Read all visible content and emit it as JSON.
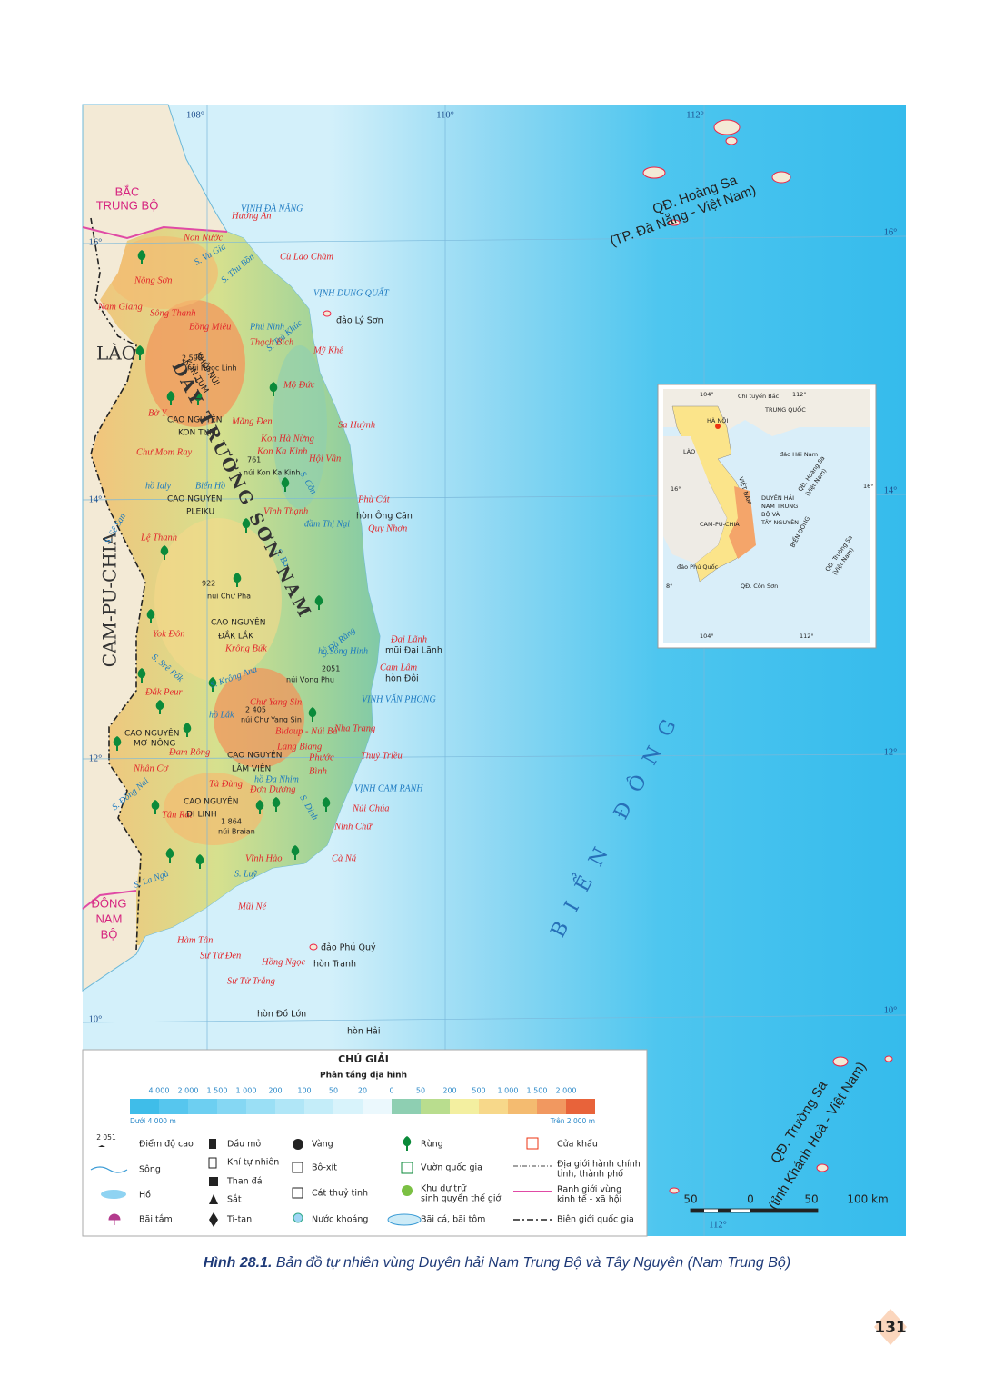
{
  "map": {
    "graticule": [
      "108°",
      "110°",
      "112°",
      "16°",
      "16°",
      "14°",
      "14°",
      "12°",
      "12°",
      "10°",
      "10°",
      "112°"
    ],
    "regions": [
      "BẮC",
      "TRUNG BỘ",
      "LÀO",
      "CAM-PU-CHIA",
      "ĐÔNG",
      "NAM",
      "BỘ",
      "BIỂN ĐÔNG",
      "QĐ. Hoàng Sa",
      "(TP. Đà Nẵng - Việt Nam)",
      "QĐ. Trường Sa",
      "(tỉnh Khánh Hoà - Việt Nam)"
    ],
    "places": [
      "Non Nước",
      "Hương An",
      "Cù Lao Chàm",
      "Nông Sơn",
      "Nam Giang",
      "Sông Thanh",
      "Bồng Miêu",
      "Phú Ninh",
      "Thạch Bích",
      "Mỹ Khê",
      "Mộ Đức",
      "Sa Huỳnh",
      "Bờ Y",
      "Măng Đen",
      "Kon Hà Nừng",
      "Kon Ka Kinh",
      "Chư Mom Ray",
      "Hội Vân",
      "Phù Cát",
      "Vĩnh Thạnh",
      "Quy Nhơn",
      "Lệ Thanh",
      "Yok Đôn",
      "Krông Búk",
      "Đại Lãnh",
      "Cam Lâm",
      "Chư Yang Sin",
      "Đắk Peur",
      "Đam Rông",
      "Bidoup - Núi Bà",
      "Lang Biang",
      "Nha Trang",
      "Phước",
      "Bình",
      "Thuỷ Triều",
      "Nhân Cơ",
      "Tà Đùng",
      "Đơn Dương",
      "Tân Rai",
      "Núi Chúa",
      "Ninh Chữ",
      "Vĩnh Hảo",
      "Cà Ná",
      "Mũi Né",
      "Hàm Tân",
      "Sư Tử Đen",
      "Hồng Ngọc",
      "Sư Tử Trắng",
      "đảo Lý Sơn",
      "2 598",
      "núi Ngọc Linh",
      "761",
      "núi Kon Ka Kinh",
      "hòn Ông Căn",
      "922",
      "núi Chư Pha",
      "mũi Đại Lãnh",
      "hòn Đôi",
      "2051",
      "núi Vọng Phu",
      "2 405",
      "núi Chư Yang Sin",
      "1 864",
      "núi Braian",
      "đảo Phú Quý",
      "hòn Tranh",
      "hòn Đồ Lớn",
      "hòn Hải",
      "CAO NGUYÊN",
      "KON TUM",
      "CAO NGUYÊN",
      "PLEIKU",
      "CAO NGUYÊN",
      "ĐẮK LẮK",
      "CAO NGUYÊN",
      "MƠ NÔNG",
      "CAO NGUYÊN",
      "LÂM VIÊN",
      "CAO NGUYÊN",
      "DI LINH",
      "VỊNH ĐÀ NẴNG",
      "VỊNH DUNG QUẤT",
      "VỊNH VĂN PHONG",
      "VỊNH CAM RANH",
      "đầm Thị Nại",
      "hồ Ialy",
      "Biển Hồ",
      "hồ Sông Hinh",
      "hồ Lắk",
      "hồ Đa Nhim",
      "S. Vu Gia",
      "S. Thu Bồn",
      "S. Trà Khúc",
      "S. Sê San",
      "S. Ba",
      "S. Krông Ana",
      "S. Đồng Nai",
      "S. La Ngà",
      "S. Luỹ",
      "S. Dinh",
      "S. Srê Pốk",
      "S. Đà Rằng",
      "S. Côn",
      "KHỐI NÚI",
      "KON TUM",
      "DÃY TRƯỜNG SƠN NAM"
    ],
    "inset": [
      "Chí tuyến Bắc",
      "104°",
      "112°",
      "TRUNG QUỐC",
      "HÀ NỘI",
      "LÀO",
      "đảo Hải Nam",
      "16°",
      "16°",
      "CAM-PU-CHIA",
      "VIỆT NAM",
      "DUYÊN HẢI",
      "NAM TRUNG",
      "BỘ VÀ",
      "TÂY NGUYÊN",
      "QĐ. Hoàng Sa",
      "(Việt Nam)",
      "BIỂN ĐÔNG",
      "QĐ. Trường Sa",
      "(Việt Nam)",
      "đảo Phú Quốc",
      "8°",
      "QĐ. Côn Sơn",
      "104°",
      "112°"
    ]
  },
  "legend": {
    "title": "CHÚ GIẢI",
    "subtitle": "Phân tầng địa hình",
    "levels": [
      "4 000",
      "2 000",
      "1 500",
      "1 000",
      "200",
      "100",
      "50",
      "20",
      "0",
      "50",
      "200",
      "500",
      "1 000",
      "1 500",
      "2 000"
    ],
    "colors": [
      "#3fbde9",
      "#56c6ee",
      "#6dcff1",
      "#85d7f3",
      "#9adff5",
      "#b0e6f7",
      "#c4edf9",
      "#d8f3fb",
      "#ebf8fd",
      "#8ecfb2",
      "#b9dd8e",
      "#f3efa0",
      "#f7d88a",
      "#f4bb70",
      "#f19860",
      "#e8633a"
    ],
    "low_end": "Dưới 4 000 m",
    "high_end": "Trên 2 000 m",
    "height_sample": "2 051",
    "items": [
      [
        "Điểm độ cao"
      ],
      [
        "Sông"
      ],
      [
        "Hồ"
      ],
      [
        "Bãi tắm"
      ],
      [
        "Dầu mỏ"
      ],
      [
        "Khí tự nhiên"
      ],
      [
        "Than đá"
      ],
      [
        "Sắt"
      ],
      [
        "Ti-tan"
      ],
      [
        "Vàng"
      ],
      [
        "Bô-xít"
      ],
      [
        "Cát thuỷ tinh"
      ],
      [
        "Nước khoáng"
      ],
      [
        "Rừng"
      ],
      [
        "Vườn quốc gia"
      ],
      [
        "Khu dự trữ",
        "sinh quyển thế giới"
      ],
      [
        "Bãi cá, bãi tôm"
      ],
      [
        "Cửa khẩu"
      ],
      [
        "Địa giới hành chính",
        "tỉnh, thành phố"
      ],
      [
        "Ranh giới vùng",
        "kinh tế - xã hội"
      ],
      [
        "Biên giới quốc gia"
      ]
    ],
    "scale": [
      "50",
      "0",
      "50",
      "100 km"
    ]
  },
  "caption": {
    "figure": "Hình 28.1.",
    "text": " Bản đồ tự nhiên vùng Duyên hải Nam Trung Bộ và Tây Nguyên (Nam Trung Bộ)"
  },
  "page_number": "131"
}
